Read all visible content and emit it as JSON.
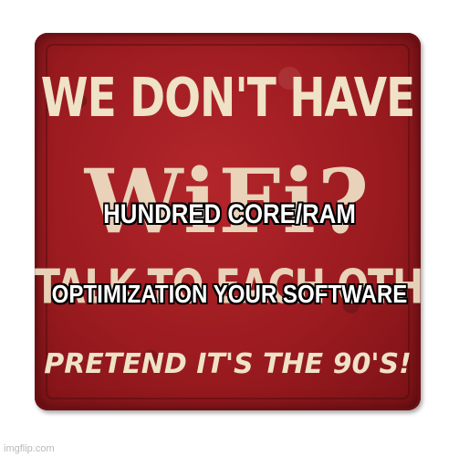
{
  "sign": {
    "line1": "WE DON'T HAVE",
    "line2": "WiFi?",
    "line3": "TALK TO EACH OTHER",
    "line4": "PRETEND IT'S THE 90'S!",
    "background_color": "#9b1b20",
    "text_color": "#efe2c6"
  },
  "captions": {
    "top": "HUNDRED CORE/RAM",
    "bottom": "OPTIMIZATION YOUR SOFTWARE",
    "color": "#ffffff",
    "outline_color": "#000000"
  },
  "watermark": "imgflip.com"
}
